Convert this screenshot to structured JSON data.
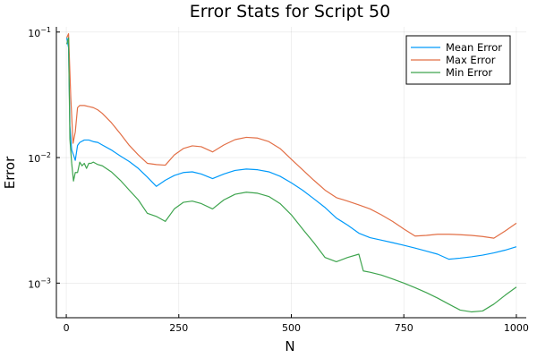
{
  "chart_data": {
    "type": "line",
    "title": "Error Stats for Script 50",
    "xlabel": "N",
    "ylabel": "Error",
    "xlim": [
      -22,
      1022
    ],
    "ylim": [
      0.00053,
      0.11
    ],
    "yscale": "log",
    "x_ticks": [
      0,
      250,
      500,
      750,
      1000
    ],
    "x_tick_labels": [
      "0",
      "250",
      "500",
      "750",
      "1000"
    ],
    "y_ticks": [
      0.001,
      0.01,
      0.1
    ],
    "y_tick_labels": [
      {
        "base": "10",
        "exp": "−3"
      },
      {
        "base": "10",
        "exp": "−2"
      },
      {
        "base": "10",
        "exp": "−1"
      }
    ],
    "grid": true,
    "legend_position": "top-right",
    "series": [
      {
        "name": "Mean Error",
        "color": "#009AFA",
        "x": [
          1,
          5,
          8,
          12,
          16,
          20,
          25,
          30,
          40,
          50,
          60,
          70,
          80,
          100,
          120,
          140,
          160,
          180,
          200,
          220,
          240,
          260,
          280,
          300,
          325,
          350,
          375,
          400,
          425,
          450,
          475,
          500,
          525,
          550,
          575,
          600,
          625,
          650,
          675,
          700,
          725,
          750,
          775,
          800,
          825,
          850,
          875,
          900,
          925,
          950,
          975,
          1000
        ],
        "y": [
          0.09,
          0.075,
          0.018,
          0.0115,
          0.0105,
          0.0095,
          0.0125,
          0.0132,
          0.0138,
          0.0138,
          0.0134,
          0.0132,
          0.0126,
          0.0115,
          0.0103,
          0.0093,
          0.0082,
          0.007,
          0.0059,
          0.0066,
          0.0072,
          0.0076,
          0.0077,
          0.0074,
          0.0068,
          0.0074,
          0.0079,
          0.0081,
          0.008,
          0.0077,
          0.0071,
          0.0063,
          0.0055,
          0.0047,
          0.004,
          0.0033,
          0.0029,
          0.0025,
          0.0023,
          0.0022,
          0.0021,
          0.002,
          0.0019,
          0.0018,
          0.0017,
          0.00155,
          0.00158,
          0.00162,
          0.00167,
          0.00174,
          0.00183,
          0.00195
        ]
      },
      {
        "name": "Max Error",
        "color": "#E26F46",
        "x": [
          1,
          5,
          10,
          15,
          20,
          25,
          30,
          40,
          50,
          60,
          70,
          80,
          100,
          120,
          140,
          160,
          180,
          200,
          220,
          240,
          260,
          280,
          300,
          325,
          350,
          375,
          400,
          425,
          450,
          475,
          500,
          525,
          550,
          575,
          600,
          625,
          650,
          675,
          700,
          725,
          750,
          775,
          800,
          825,
          850,
          875,
          900,
          925,
          950,
          975,
          1000
        ],
        "y": [
          0.09,
          0.097,
          0.03,
          0.013,
          0.016,
          0.025,
          0.026,
          0.026,
          0.0255,
          0.025,
          0.024,
          0.0225,
          0.019,
          0.0155,
          0.0125,
          0.0105,
          0.009,
          0.0088,
          0.0087,
          0.0105,
          0.0118,
          0.0124,
          0.0122,
          0.0111,
          0.0126,
          0.0139,
          0.0145,
          0.0143,
          0.0134,
          0.0118,
          0.0097,
          0.008,
          0.0066,
          0.0055,
          0.0048,
          0.0045,
          0.0042,
          0.0039,
          0.0035,
          0.0031,
          0.0027,
          0.00237,
          0.0024,
          0.00245,
          0.00245,
          0.00243,
          0.0024,
          0.00235,
          0.00228,
          0.0026,
          0.003
        ]
      },
      {
        "name": "Min Error",
        "color": "#3EA44E",
        "x": [
          1,
          5,
          8,
          12,
          16,
          20,
          25,
          30,
          35,
          40,
          45,
          50,
          55,
          60,
          70,
          80,
          100,
          120,
          140,
          160,
          180,
          200,
          220,
          240,
          260,
          280,
          300,
          325,
          350,
          375,
          400,
          425,
          450,
          475,
          500,
          525,
          550,
          575,
          600,
          625,
          650,
          660,
          675,
          700,
          725,
          750,
          775,
          800,
          825,
          850,
          875,
          900,
          925,
          950,
          975,
          1000
        ],
        "y": [
          0.08,
          0.09,
          0.014,
          0.009,
          0.0065,
          0.0076,
          0.0076,
          0.0092,
          0.0086,
          0.009,
          0.0082,
          0.009,
          0.009,
          0.0092,
          0.0088,
          0.0086,
          0.0077,
          0.0066,
          0.0055,
          0.0046,
          0.0036,
          0.0034,
          0.0031,
          0.0039,
          0.0044,
          0.0045,
          0.0043,
          0.0039,
          0.0046,
          0.0051,
          0.0053,
          0.0052,
          0.0049,
          0.0043,
          0.0035,
          0.0027,
          0.0021,
          0.0016,
          0.00148,
          0.0016,
          0.0017,
          0.00125,
          0.00122,
          0.00116,
          0.00108,
          0.001,
          0.00092,
          0.00084,
          0.00076,
          0.00068,
          0.00061,
          0.00059,
          0.0006,
          0.00068,
          0.0008,
          0.00093
        ]
      }
    ]
  }
}
